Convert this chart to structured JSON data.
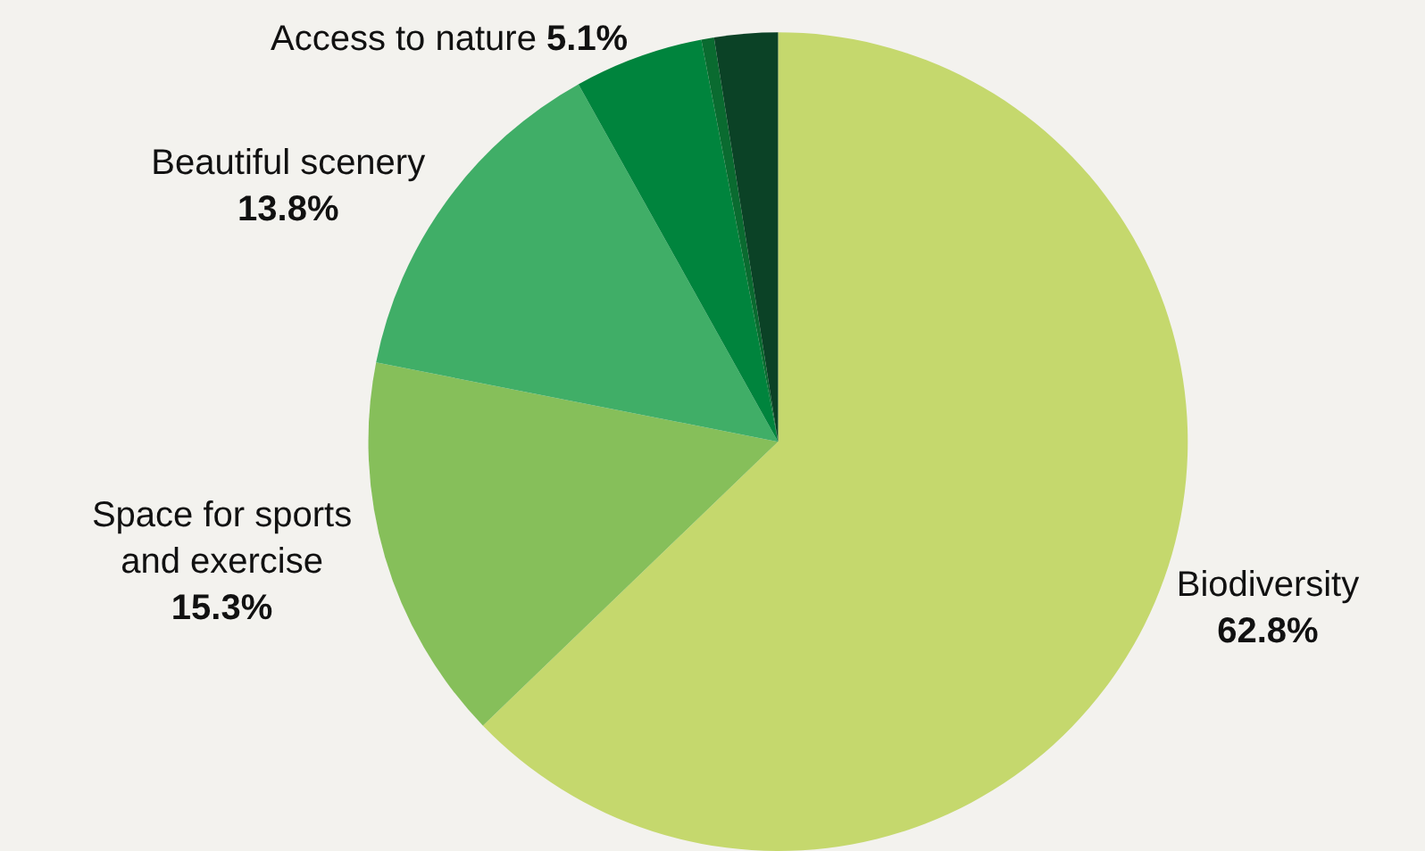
{
  "chart_data": {
    "type": "pie",
    "categories": [
      "Biodiversity",
      "Space for sports and exercise",
      "Beautiful scenery",
      "Access to nature",
      null,
      null
    ],
    "values": [
      62.8,
      15.3,
      13.8,
      5.1,
      0.5,
      2.5
    ],
    "value_labels": [
      "62.8%",
      "15.3%",
      "13.8%",
      "5.1%",
      null,
      null
    ],
    "colors": [
      "#c5d86d",
      "#86bf5a",
      "#40ae67",
      "#00843d",
      "#0a6b30",
      "#0b4226"
    ],
    "legend": false
  }
}
